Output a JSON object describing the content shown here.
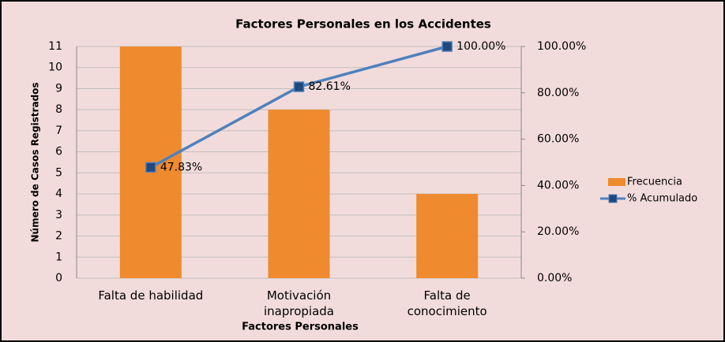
{
  "chart_data": {
    "type": "bar",
    "title": "Factores Personales en los Accidentes",
    "xlabel": "Factores Personales",
    "ylabel": "Número de Casos Registrados",
    "categories": [
      "Falta de habilidad",
      "Motivación inapropiada",
      "Falta de conocimiento"
    ],
    "series": [
      {
        "name": "Frecuencia",
        "type": "bar",
        "color": "#ef8a2f",
        "values": [
          11,
          8,
          4
        ]
      },
      {
        "name": "% Acumulado",
        "type": "line",
        "axis": "y2",
        "color": "#4f81bd",
        "marker_color": "#1f497d",
        "values": [
          47.83,
          82.61,
          100
        ],
        "value_labels": [
          "47.83%",
          "82.61%",
          "100.00%"
        ]
      }
    ],
    "ylim": [
      0,
      11
    ],
    "yticks": [
      0,
      1,
      2,
      3,
      4,
      5,
      6,
      7,
      8,
      9,
      10,
      11
    ],
    "y2lim": [
      0,
      100
    ],
    "y2ticks": [
      {
        "value": 0,
        "label": "0.00%"
      },
      {
        "value": 20,
        "label": "20.00%"
      },
      {
        "value": 40,
        "label": "40.00%"
      },
      {
        "value": 60,
        "label": "60.00%"
      },
      {
        "value": 80,
        "label": "80.00%"
      },
      {
        "value": 100,
        "label": "100.00%"
      }
    ],
    "grid": true,
    "legend": "right"
  }
}
